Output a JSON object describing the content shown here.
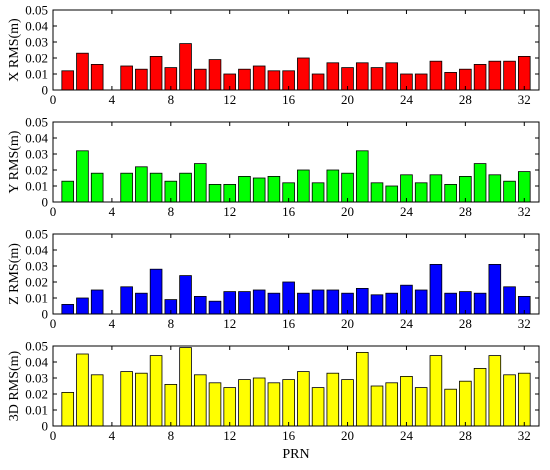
{
  "chart_data": [
    {
      "type": "bar",
      "ylabel": "X RMS(m)",
      "xlim": [
        0,
        33
      ],
      "ylim": [
        0,
        0.05
      ],
      "xticks": [
        "0",
        "4",
        "8",
        "12",
        "16",
        "20",
        "24",
        "28",
        "32"
      ],
      "yticks": [
        "0",
        "0.01",
        "0.02",
        "0.03",
        "0.04",
        "0.05"
      ],
      "color": "#ff0000",
      "x": [
        1,
        2,
        3,
        5,
        6,
        7,
        8,
        9,
        10,
        11,
        12,
        13,
        14,
        15,
        16,
        17,
        18,
        19,
        20,
        21,
        22,
        23,
        24,
        25,
        26,
        27,
        28,
        29,
        30,
        31,
        32
      ],
      "values": [
        0.012,
        0.023,
        0.016,
        0.015,
        0.013,
        0.021,
        0.014,
        0.029,
        0.013,
        0.019,
        0.01,
        0.013,
        0.015,
        0.012,
        0.012,
        0.02,
        0.01,
        0.017,
        0.014,
        0.017,
        0.014,
        0.017,
        0.01,
        0.01,
        0.018,
        0.011,
        0.013,
        0.016,
        0.018,
        0.018,
        0.021
      ]
    },
    {
      "type": "bar",
      "ylabel": "Y RMS(m)",
      "xlim": [
        0,
        33
      ],
      "ylim": [
        0,
        0.05
      ],
      "xticks": [
        "0",
        "4",
        "8",
        "12",
        "16",
        "20",
        "24",
        "28",
        "32"
      ],
      "yticks": [
        "0",
        "0.01",
        "0.02",
        "0.03",
        "0.04",
        "0.05"
      ],
      "color": "#00ff00",
      "x": [
        1,
        2,
        3,
        5,
        6,
        7,
        8,
        9,
        10,
        11,
        12,
        13,
        14,
        15,
        16,
        17,
        18,
        19,
        20,
        21,
        22,
        23,
        24,
        25,
        26,
        27,
        28,
        29,
        30,
        31,
        32
      ],
      "values": [
        0.013,
        0.032,
        0.018,
        0.018,
        0.022,
        0.018,
        0.013,
        0.018,
        0.024,
        0.011,
        0.011,
        0.016,
        0.015,
        0.016,
        0.012,
        0.02,
        0.012,
        0.02,
        0.018,
        0.032,
        0.012,
        0.01,
        0.017,
        0.012,
        0.017,
        0.011,
        0.016,
        0.024,
        0.017,
        0.013,
        0.019
      ]
    },
    {
      "type": "bar",
      "ylabel": "Z RMS(m)",
      "xlim": [
        0,
        33
      ],
      "ylim": [
        0,
        0.05
      ],
      "xticks": [
        "0",
        "4",
        "8",
        "12",
        "16",
        "20",
        "24",
        "28",
        "32"
      ],
      "yticks": [
        "0",
        "0.01",
        "0.02",
        "0.03",
        "0.04",
        "0.05"
      ],
      "color": "#0000ff",
      "x": [
        1,
        2,
        3,
        5,
        6,
        7,
        8,
        9,
        10,
        11,
        12,
        13,
        14,
        15,
        16,
        17,
        18,
        19,
        20,
        21,
        22,
        23,
        24,
        25,
        26,
        27,
        28,
        29,
        30,
        31,
        32
      ],
      "values": [
        0.006,
        0.01,
        0.015,
        0.017,
        0.013,
        0.028,
        0.009,
        0.024,
        0.011,
        0.008,
        0.014,
        0.014,
        0.015,
        0.013,
        0.02,
        0.013,
        0.015,
        0.015,
        0.013,
        0.016,
        0.012,
        0.013,
        0.018,
        0.015,
        0.031,
        0.013,
        0.014,
        0.013,
        0.031,
        0.017,
        0.011
      ]
    },
    {
      "type": "bar",
      "ylabel": "3D RMS(m)",
      "xlabel": "PRN",
      "xlim": [
        0,
        33
      ],
      "ylim": [
        0,
        0.05
      ],
      "xticks": [
        "0",
        "4",
        "8",
        "12",
        "16",
        "20",
        "24",
        "28",
        "32"
      ],
      "yticks": [
        "0",
        "0.01",
        "0.02",
        "0.03",
        "0.04",
        "0.05"
      ],
      "color": "#ffff00",
      "x": [
        1,
        2,
        3,
        5,
        6,
        7,
        8,
        9,
        10,
        11,
        12,
        13,
        14,
        15,
        16,
        17,
        18,
        19,
        20,
        21,
        22,
        23,
        24,
        25,
        26,
        27,
        28,
        29,
        30,
        31,
        32
      ],
      "values": [
        0.021,
        0.045,
        0.032,
        0.034,
        0.033,
        0.044,
        0.026,
        0.049,
        0.032,
        0.027,
        0.024,
        0.029,
        0.03,
        0.027,
        0.029,
        0.034,
        0.024,
        0.033,
        0.029,
        0.046,
        0.025,
        0.027,
        0.031,
        0.024,
        0.044,
        0.023,
        0.028,
        0.036,
        0.044,
        0.032,
        0.033
      ]
    }
  ]
}
